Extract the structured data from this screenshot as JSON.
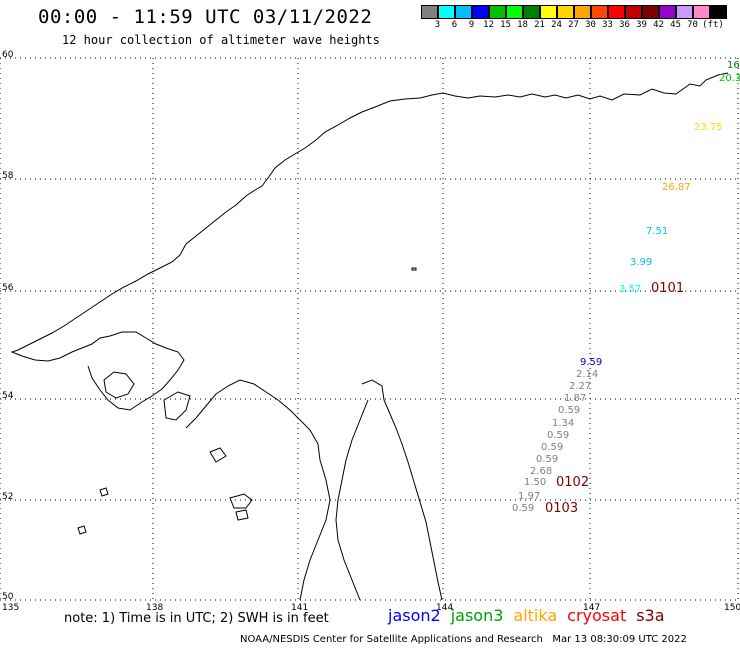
{
  "title": "00:00 - 11:59 UTC 03/11/2022",
  "subtitle": "12 hour collection of altimeter wave heights",
  "color_scale": {
    "unit": "(ft)",
    "colors": [
      "#808080",
      "#00ffff",
      "#00bfff",
      "#0000ff",
      "#00c000",
      "#00ff00",
      "#008000",
      "#ffff00",
      "#ffd700",
      "#ffa500",
      "#ff4500",
      "#ff0000",
      "#c00000",
      "#800000",
      "#9900cc",
      "#cc99ff",
      "#ff88cc",
      "#000000"
    ],
    "labels": [
      "3",
      "6",
      "9",
      "12",
      "15",
      "18",
      "21",
      "24",
      "27",
      "30",
      "33",
      "36",
      "39",
      "42",
      "45",
      "70"
    ]
  },
  "axes": {
    "lat_labels": [
      "60",
      "58",
      "56",
      "54",
      "52",
      "50"
    ],
    "lon_labels": [
      "135",
      "138",
      "141",
      "144",
      "147",
      "150"
    ]
  },
  "observations": [
    {
      "text": "16",
      "color": "#008000"
    },
    {
      "text": "20.3",
      "color": "#00c000"
    },
    {
      "text": "23.75",
      "color": "#ffd700"
    },
    {
      "text": "26.87",
      "color": "#ffa500"
    },
    {
      "text": "7.51",
      "color": "#00bfff"
    },
    {
      "text": "3.99",
      "color": "#00bfff"
    },
    {
      "text": "3.57",
      "color": "#00ffff"
    },
    {
      "text": "0101",
      "color": "#800000"
    },
    {
      "text": "9.59",
      "color": "#0000cc"
    },
    {
      "text": "2.14",
      "color": "#808080"
    },
    {
      "text": "2.27",
      "color": "#808080"
    },
    {
      "text": "1.87",
      "color": "#808080"
    },
    {
      "text": "0.59",
      "color": "#808080"
    },
    {
      "text": "1.34",
      "color": "#808080"
    },
    {
      "text": "0.59",
      "color": "#808080"
    },
    {
      "text": "0.59",
      "color": "#808080"
    },
    {
      "text": "0.59",
      "color": "#808080"
    },
    {
      "text": "2.68",
      "color": "#808080"
    },
    {
      "text": "1.50",
      "color": "#808080"
    },
    {
      "text": "0102",
      "color": "#800000"
    },
    {
      "text": "1.97",
      "color": "#808080"
    },
    {
      "text": "0.59",
      "color": "#808080"
    },
    {
      "text": "0103",
      "color": "#800000"
    }
  ],
  "note": "note: 1) Time is in UTC; 2) SWH is in feet",
  "satellites": [
    {
      "name": "jason2",
      "color": "#0000ff"
    },
    {
      "name": "jason3",
      "color": "#00a000"
    },
    {
      "name": "altika",
      "color": "#ffa500"
    },
    {
      "name": "cryosat",
      "color": "#ff0000"
    },
    {
      "name": "s3a",
      "color": "#800000"
    }
  ],
  "footer": "NOAA/NESDIS Center for Satellite Applications and Research   Mar 13 08:30:09 UTC 2022"
}
